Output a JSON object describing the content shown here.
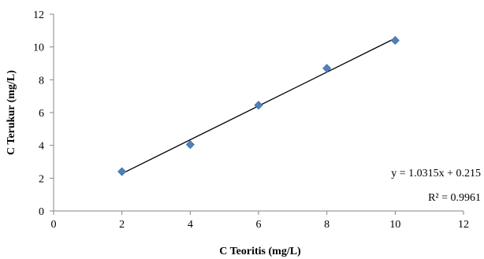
{
  "chart_data": {
    "type": "scatter",
    "title": "",
    "xlabel": "C Teoritis (mg/L)",
    "ylabel": "C Terukur (mg/L)",
    "xlim": [
      0,
      12
    ],
    "ylim": [
      0,
      12
    ],
    "x_ticks": [
      0,
      2,
      4,
      6,
      8,
      10,
      12
    ],
    "y_ticks": [
      0,
      2,
      4,
      6,
      8,
      10,
      12
    ],
    "grid": false,
    "marker_color": "#4F81BD",
    "trendline_color": "#000000",
    "series": [
      {
        "x": [
          2,
          4,
          6,
          8,
          10
        ],
        "y": [
          2.4,
          4.05,
          6.45,
          8.7,
          10.4
        ]
      }
    ],
    "trendline": {
      "slope": 1.0315,
      "intercept": 0.215,
      "x_range": [
        2,
        10
      ]
    },
    "annotations": {
      "equation": "y = 1.0315x + 0.215",
      "r_squared": "R² = 0.9961"
    }
  }
}
